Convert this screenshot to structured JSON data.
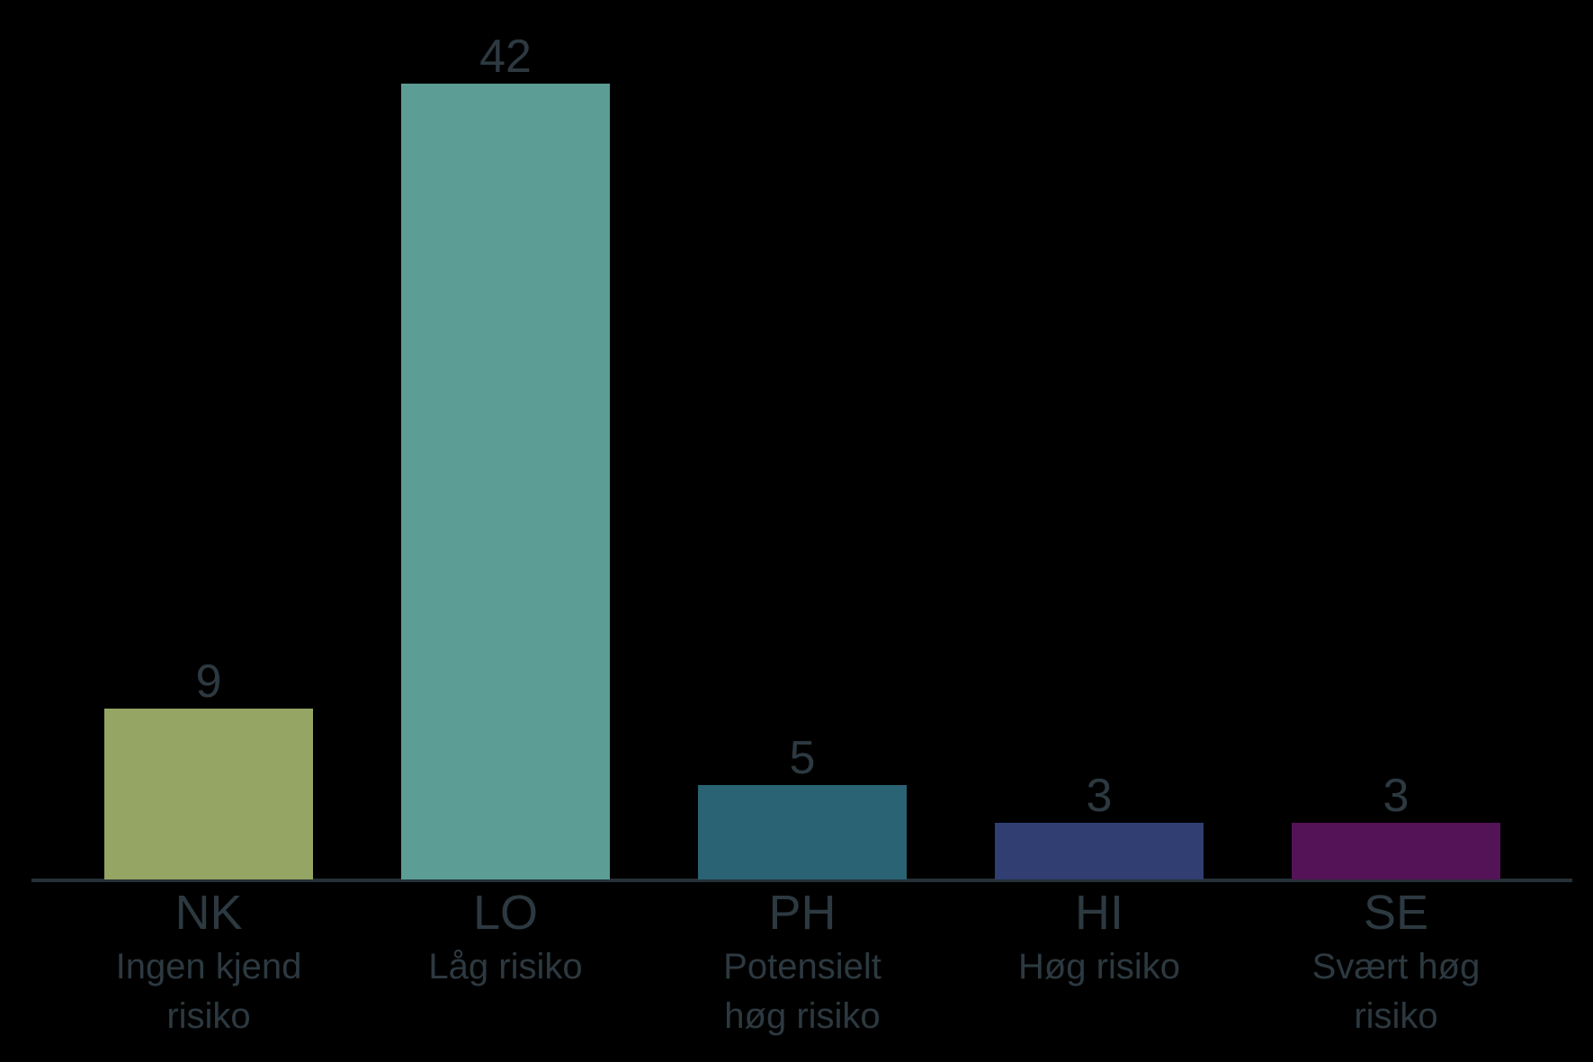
{
  "chart_data": {
    "type": "bar",
    "categories": [
      {
        "code": "NK",
        "label_lines": [
          "Ingen kjend",
          "risiko"
        ]
      },
      {
        "code": "LO",
        "label_lines": [
          "Låg risiko"
        ]
      },
      {
        "code": "PH",
        "label_lines": [
          "Potensielt",
          "høg risiko"
        ]
      },
      {
        "code": "HI",
        "label_lines": [
          "Høg risiko"
        ]
      },
      {
        "code": "SE",
        "label_lines": [
          "Svært høg",
          "risiko"
        ]
      }
    ],
    "values": [
      9,
      42,
      5,
      3,
      3
    ],
    "value_labels": [
      "9",
      "42",
      "5",
      "3",
      "3"
    ],
    "bar_colors": [
      "#95a564",
      "#5c9d96",
      "#2a6373",
      "#303e72",
      "#541357"
    ],
    "title": "",
    "xlabel": "",
    "ylabel": "",
    "ylim": [
      0,
      46.4
    ],
    "grid": false,
    "legend": "none",
    "colors": {
      "background": "#000000",
      "axis": "#263137",
      "text": "#2d3940"
    }
  }
}
